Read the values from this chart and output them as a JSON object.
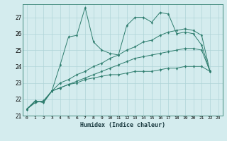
{
  "title": "",
  "xlabel": "Humidex (Indice chaleur)",
  "ylabel": "",
  "bg_color": "#d4ecee",
  "line_color": "#2e7d6e",
  "grid_color": "#afd4d8",
  "xlim": [
    -0.5,
    23.5
  ],
  "ylim": [
    21.0,
    27.8
  ],
  "yticks": [
    21,
    22,
    23,
    24,
    25,
    26,
    27
  ],
  "xticks": [
    0,
    1,
    2,
    3,
    4,
    5,
    6,
    7,
    8,
    9,
    10,
    11,
    12,
    13,
    14,
    15,
    16,
    17,
    18,
    19,
    20,
    21,
    22,
    23
  ],
  "series": [
    [
      21.4,
      21.9,
      21.8,
      22.5,
      24.1,
      25.8,
      25.9,
      27.6,
      25.5,
      25.0,
      24.8,
      24.7,
      26.5,
      27.0,
      27.0,
      26.7,
      27.3,
      27.2,
      26.0,
      26.1,
      26.0,
      25.3,
      23.7
    ],
    [
      21.4,
      21.9,
      21.8,
      22.5,
      23.0,
      23.2,
      23.5,
      23.7,
      24.0,
      24.2,
      24.5,
      24.7,
      25.0,
      25.2,
      25.5,
      25.6,
      25.9,
      26.1,
      26.2,
      26.3,
      26.2,
      25.9,
      23.7
    ],
    [
      21.4,
      21.8,
      21.9,
      22.5,
      22.7,
      22.9,
      23.1,
      23.3,
      23.5,
      23.7,
      23.9,
      24.1,
      24.3,
      24.5,
      24.6,
      24.7,
      24.8,
      24.9,
      25.0,
      25.1,
      25.1,
      25.0,
      23.7
    ],
    [
      21.4,
      21.8,
      21.9,
      22.5,
      22.7,
      22.9,
      23.0,
      23.2,
      23.3,
      23.4,
      23.5,
      23.5,
      23.6,
      23.7,
      23.7,
      23.7,
      23.8,
      23.9,
      23.9,
      24.0,
      24.0,
      24.0,
      23.7
    ]
  ]
}
